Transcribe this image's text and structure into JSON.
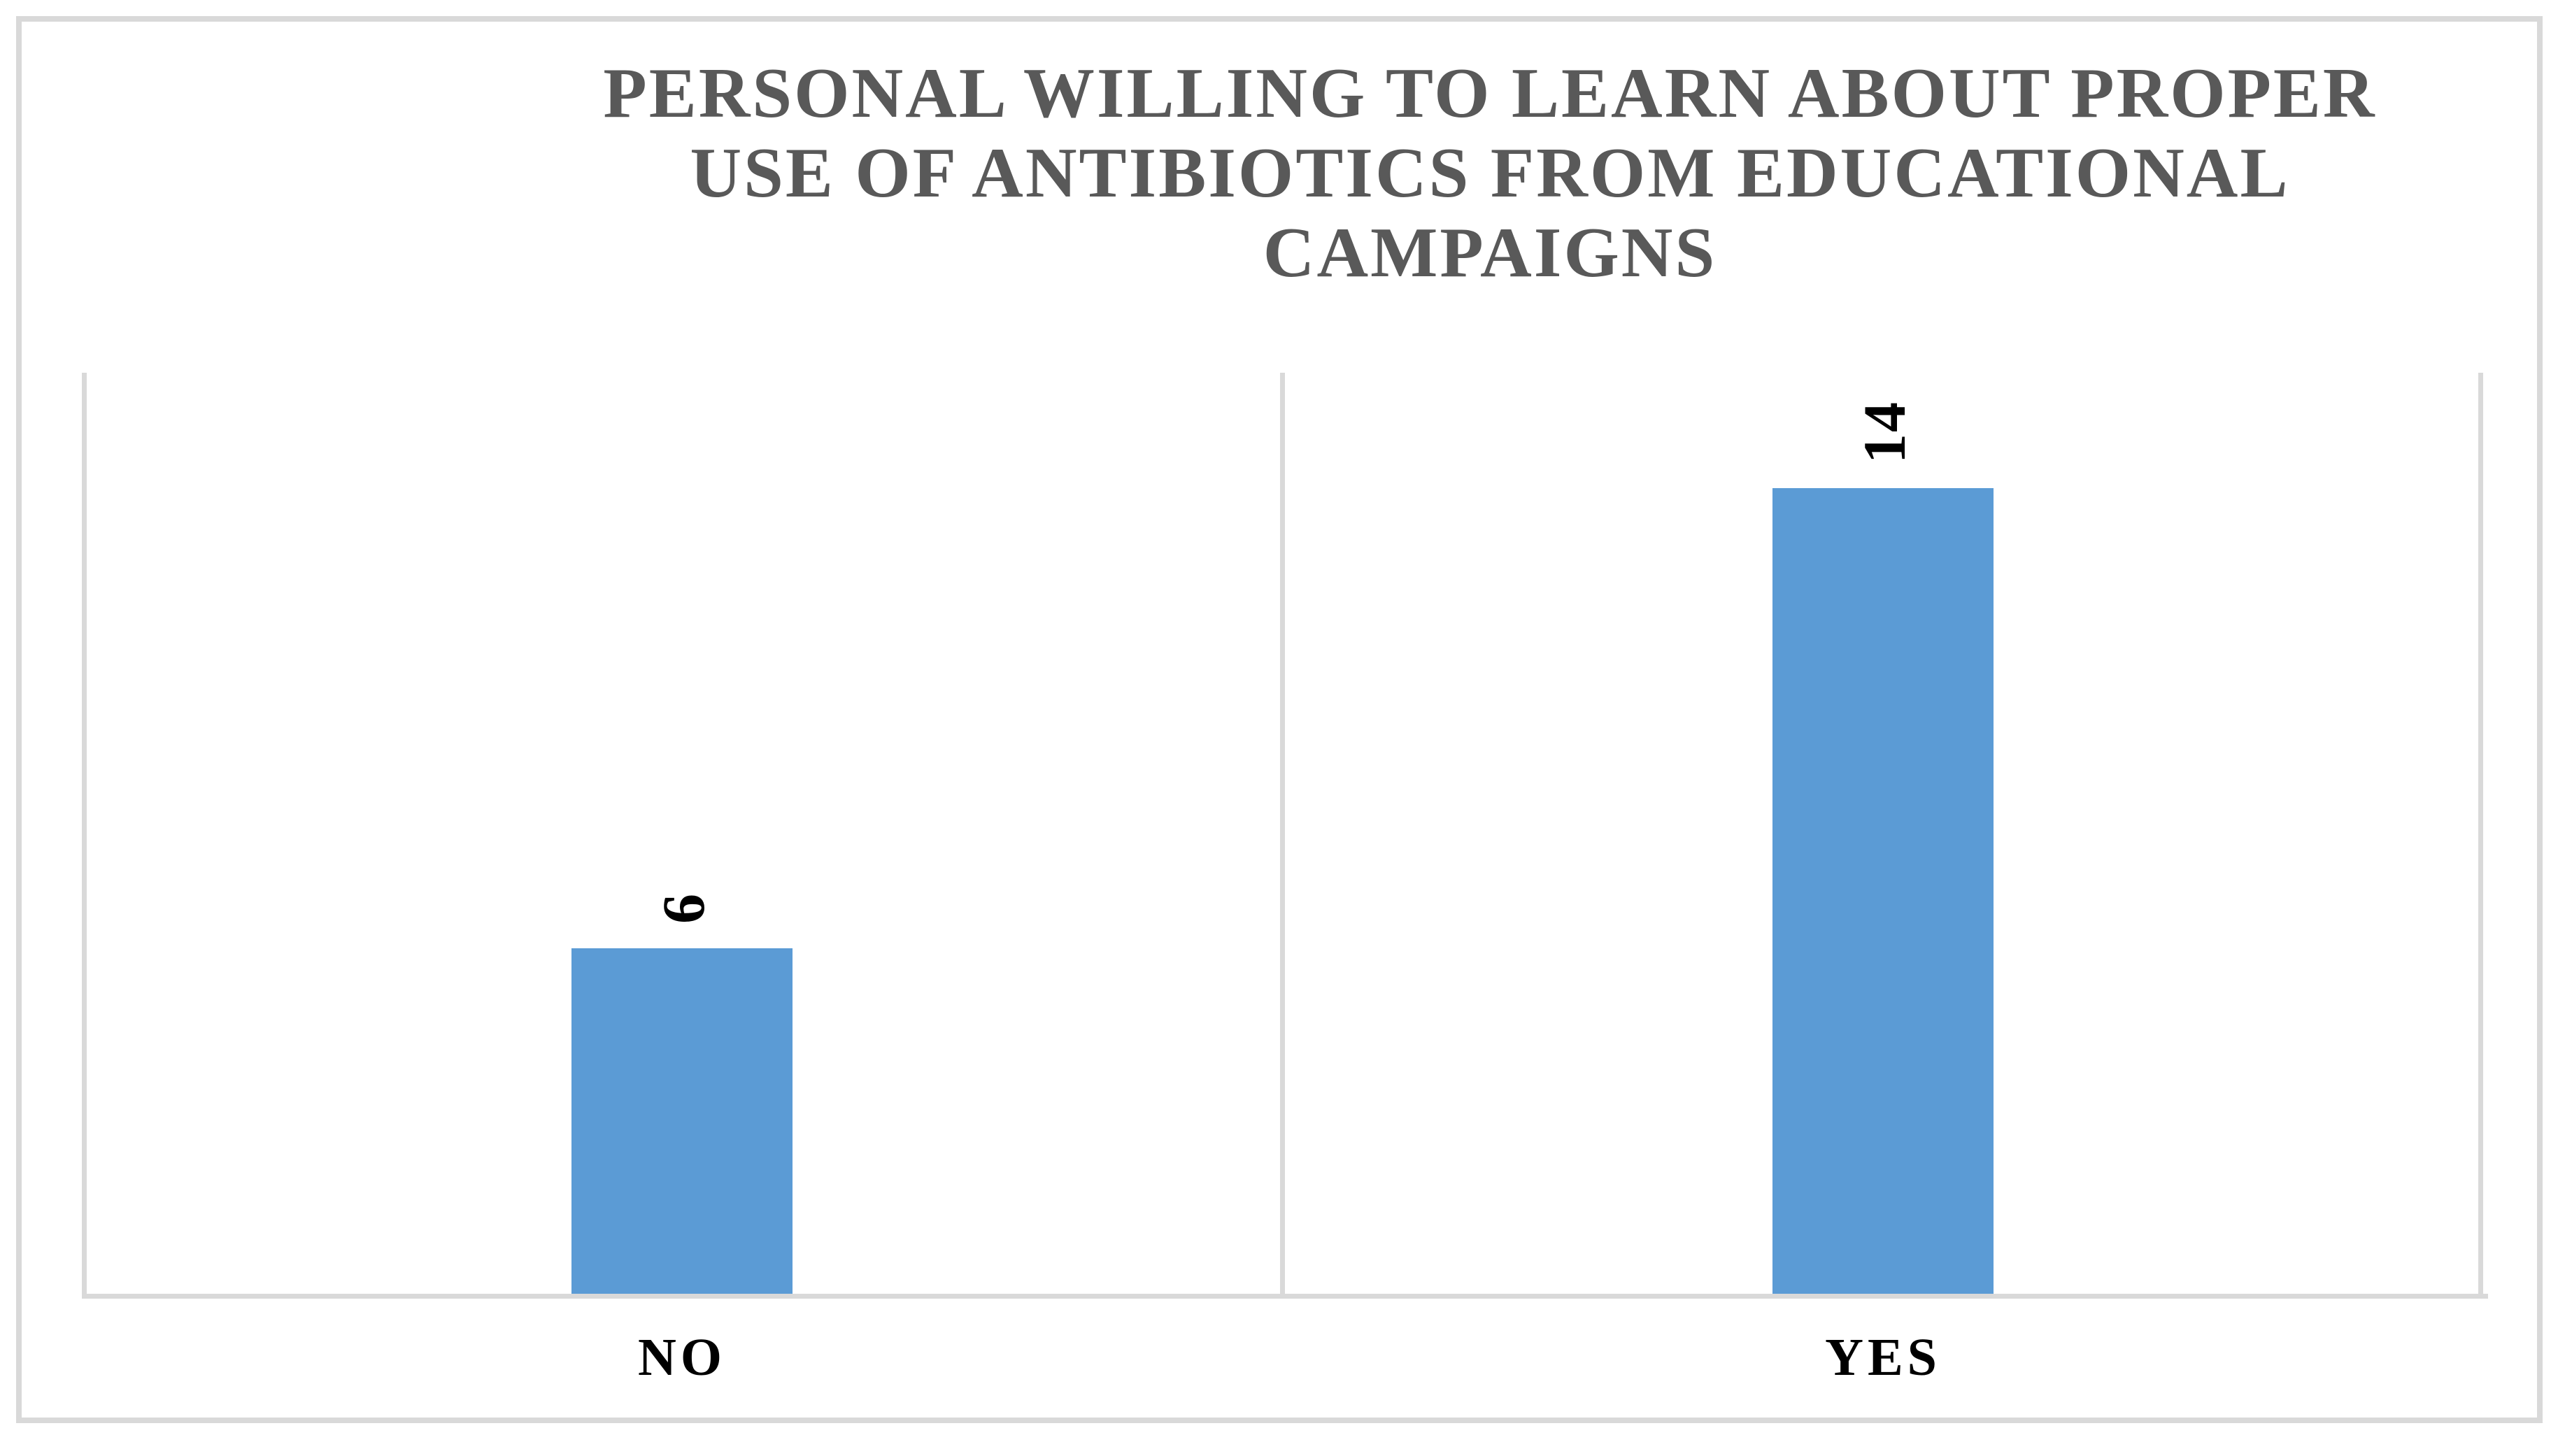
{
  "chart_data": {
    "type": "bar",
    "title": "PERSONAL WILLING TO LEARN ABOUT PROPER USE OF ANTIBIOTICS FROM EDUCATIONAL CAMPAIGNS",
    "title_lines": [
      "PERSONAL WILLING TO LEARN ABOUT PROPER",
      "USE OF ANTIBIOTICS FROM EDUCATIONAL",
      "CAMPAIGNS"
    ],
    "categories": [
      "NO",
      "YES"
    ],
    "values": [
      6,
      14
    ],
    "data_labels": [
      "6",
      "14"
    ],
    "data_label_rotation_deg": -90,
    "xlabel": "",
    "ylabel": "",
    "ylim": [
      0,
      16
    ],
    "yaxis_ticks_visible": false,
    "grid": "vertical category boundary lines only",
    "legend_position": "none",
    "colors": {
      "bar": "#5B9BD5",
      "title_text": "#595959",
      "label_text": "#000000",
      "gridline": "#D9D9D9",
      "background": "#FFFFFF"
    }
  }
}
